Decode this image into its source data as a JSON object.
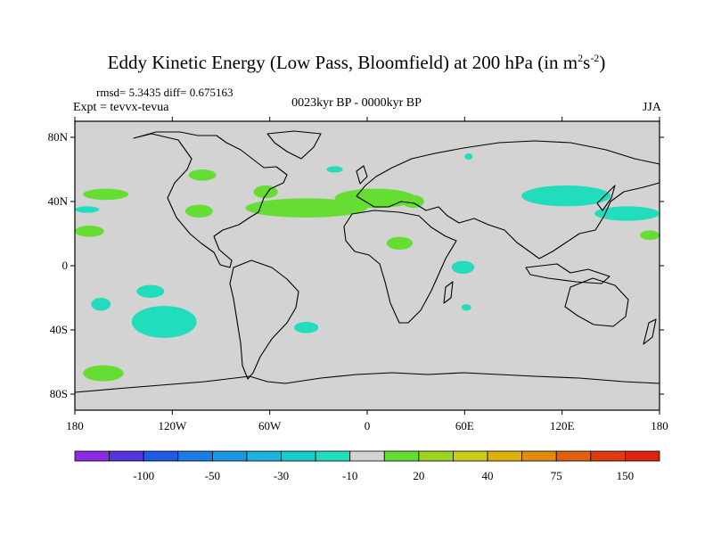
{
  "title": {
    "main": "Eddy Kinetic Energy (Low Pass, Bloomfield) at 200 hPa (in m",
    "sup1": "2",
    "mid": "s",
    "sup2": "-2",
    "end": ")"
  },
  "stats": "rmsd= 5.3435 diff= 0.675163",
  "expt": "Expt = tevvx-tevua",
  "period": "0023kyr BP - 0000kyr BP",
  "season": "JJA",
  "map": {
    "projection": "cylindrical-equidistant",
    "background_color": "#d3d3d3",
    "coastline_color": "#000000",
    "lon_range": [
      -180,
      180
    ],
    "lat_range": [
      -90,
      90
    ],
    "lat_ticks": [
      {
        "lat": 80,
        "label": "80N"
      },
      {
        "lat": 40,
        "label": "40N"
      },
      {
        "lat": 0,
        "label": "0"
      },
      {
        "lat": -40,
        "label": "40S"
      },
      {
        "lat": -80,
        "label": "80S"
      }
    ],
    "lon_ticks": [
      {
        "lon": -180,
        "label": "180"
      },
      {
        "lon": -120,
        "label": "120W"
      },
      {
        "lon": -60,
        "label": "60W"
      },
      {
        "lon": 0,
        "label": "0"
      },
      {
        "lon": 60,
        "label": "60E"
      },
      {
        "lon": 120,
        "label": "120E"
      },
      {
        "lon": 180,
        "label": "180"
      }
    ],
    "anomaly_regions": [
      {
        "name": "n-pacific-west-green",
        "sign": "positive",
        "color": "#66dd33",
        "lon": [
          -175,
          -147
        ],
        "lat": [
          41,
          48
        ]
      },
      {
        "name": "n-pacific-east-teal-a",
        "sign": "negative",
        "color": "#22ddbb",
        "lon": [
          -180,
          -165
        ],
        "lat": [
          33,
          37
        ]
      },
      {
        "name": "n-pacific-green-b",
        "sign": "positive",
        "color": "#66dd33",
        "lon": [
          -180,
          -162
        ],
        "lat": [
          18,
          25
        ]
      },
      {
        "name": "canada-green",
        "sign": "positive",
        "color": "#66dd33",
        "lon": [
          -110,
          -93
        ],
        "lat": [
          53,
          60
        ]
      },
      {
        "name": "us-green",
        "sign": "positive",
        "color": "#66dd33",
        "lon": [
          -112,
          -95
        ],
        "lat": [
          30,
          38
        ]
      },
      {
        "name": "newfoundland-green",
        "sign": "positive",
        "color": "#66dd33",
        "lon": [
          -70,
          -55
        ],
        "lat": [
          42,
          50
        ]
      },
      {
        "name": "atlantic-green-band",
        "sign": "positive",
        "color": "#66dd33",
        "lon": [
          -75,
          0
        ],
        "lat": [
          30,
          42
        ]
      },
      {
        "name": "europe-green",
        "sign": "positive",
        "color": "#66dd33",
        "lon": [
          -20,
          30
        ],
        "lat": [
          36,
          48
        ]
      },
      {
        "name": "turkey-green",
        "sign": "positive",
        "color": "#66dd33",
        "lon": [
          22,
          35
        ],
        "lat": [
          36,
          44
        ]
      },
      {
        "name": "sahara-green",
        "sign": "positive",
        "color": "#66dd33",
        "lon": [
          12,
          28
        ],
        "lat": [
          10,
          18
        ]
      },
      {
        "name": "barents-teal",
        "sign": "negative",
        "color": "#22ddbb",
        "lon": [
          -25,
          -15
        ],
        "lat": [
          58,
          62
        ]
      },
      {
        "name": "siberia-teal",
        "sign": "negative",
        "color": "#22ddbb",
        "lon": [
          60,
          65
        ],
        "lat": [
          66,
          70
        ]
      },
      {
        "name": "china-japan-teal",
        "sign": "negative",
        "color": "#22ddbb",
        "lon": [
          95,
          150
        ],
        "lat": [
          37,
          50
        ]
      },
      {
        "name": "n-pacific-east-teal",
        "sign": "negative",
        "color": "#22ddbb",
        "lon": [
          140,
          180
        ],
        "lat": [
          28,
          37
        ]
      },
      {
        "name": "dateline-green",
        "sign": "positive",
        "color": "#66dd33",
        "lon": [
          168,
          180
        ],
        "lat": [
          16,
          22
        ]
      },
      {
        "name": "indian-ocean-teal",
        "sign": "negative",
        "color": "#22ddbb",
        "lon": [
          52,
          66
        ],
        "lat": [
          -5,
          3
        ]
      },
      {
        "name": "madagascar-teal",
        "sign": "negative",
        "color": "#22ddbb",
        "lon": [
          58,
          64
        ],
        "lat": [
          -28,
          -24
        ]
      },
      {
        "name": "s-pacific-teal-a",
        "sign": "negative",
        "color": "#22ddbb",
        "lon": [
          -170,
          -158
        ],
        "lat": [
          -28,
          -20
        ]
      },
      {
        "name": "s-pacific-teal-b",
        "sign": "negative",
        "color": "#22ddbb",
        "lon": [
          -142,
          -125
        ],
        "lat": [
          -20,
          -12
        ]
      },
      {
        "name": "s-pacific-teal-c",
        "sign": "negative",
        "color": "#22ddbb",
        "lon": [
          -145,
          -105
        ],
        "lat": [
          -45,
          -25
        ]
      },
      {
        "name": "s-atlantic-teal",
        "sign": "negative",
        "color": "#22ddbb",
        "lon": [
          -45,
          -30
        ],
        "lat": [
          -42,
          -35
        ]
      },
      {
        "name": "s-pacific-green",
        "sign": "positive",
        "color": "#66dd33",
        "lon": [
          -175,
          -150
        ],
        "lat": [
          -72,
          -62
        ]
      }
    ]
  },
  "colorbar": {
    "colors": [
      "#8a2be2",
      "#5533dd",
      "#1e5be0",
      "#1c7ce4",
      "#1c96e2",
      "#1eb2dc",
      "#1ccccc",
      "#22ddbb",
      "#d3d3d3",
      "#66dd33",
      "#9ad522",
      "#c9cc1a",
      "#ddb00f",
      "#e08a10",
      "#e0600f",
      "#dd3b10",
      "#dd2211"
    ],
    "labels": [
      {
        "after_box": 1,
        "text": "-100"
      },
      {
        "after_box": 3,
        "text": "-50"
      },
      {
        "after_box": 5,
        "text": "-30"
      },
      {
        "after_box": 7,
        "text": "-10"
      },
      {
        "after_box": 9,
        "text": "20"
      },
      {
        "after_box": 11,
        "text": "40"
      },
      {
        "after_box": 13,
        "text": "75"
      },
      {
        "after_box": 15,
        "text": "150"
      }
    ]
  }
}
